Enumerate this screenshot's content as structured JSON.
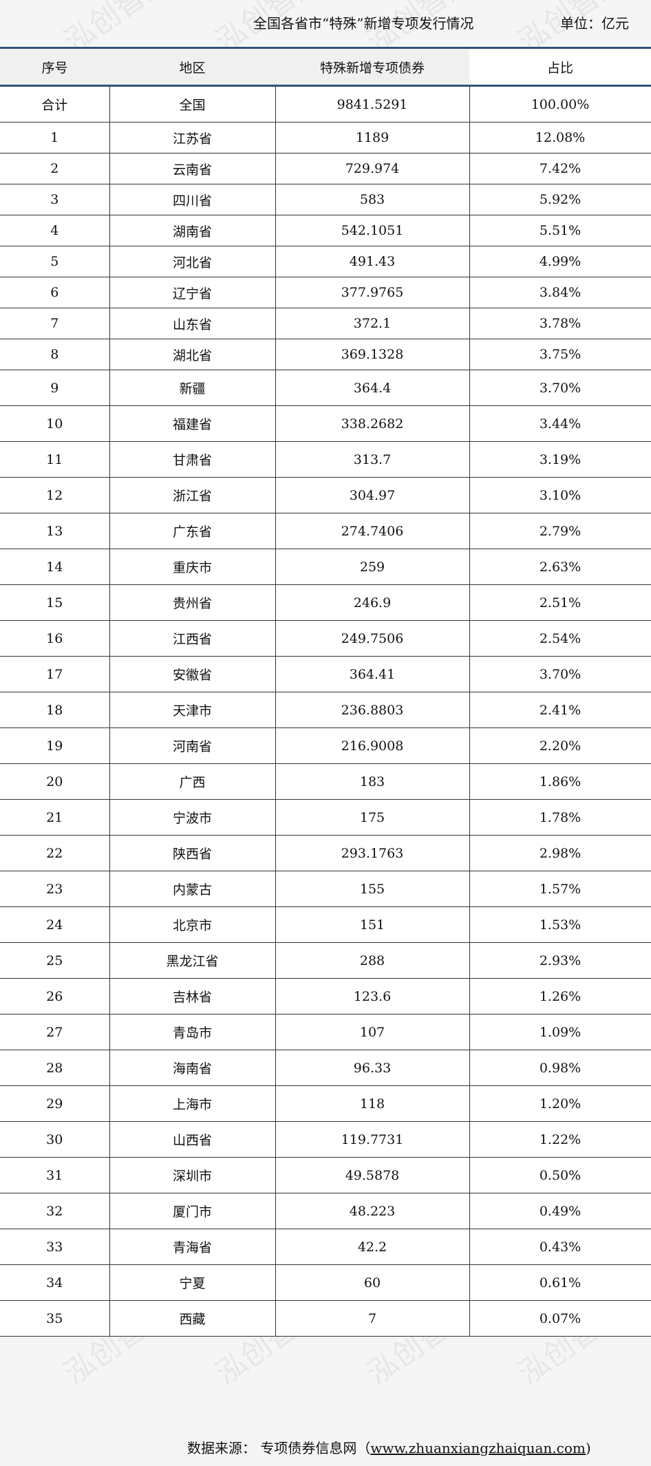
{
  "title": "全国各省市“特殊”新增专项发行情况",
  "unit": "单位：亿元",
  "columns": [
    "序号",
    "地区",
    "特殊新增专项债券",
    "占比"
  ],
  "total": {
    "seq": "合计",
    "region": "全国",
    "amount": "9841.5291",
    "share": "100.00%"
  },
  "rows": [
    [
      "1",
      "江苏省",
      "1189",
      "12.08%"
    ],
    [
      "2",
      "云南省",
      "729.974",
      "7.42%"
    ],
    [
      "3",
      "四川省",
      "583",
      "5.92%"
    ],
    [
      "4",
      "湖南省",
      "542.1051",
      "5.51%"
    ],
    [
      "5",
      "河北省",
      "491.43",
      "4.99%"
    ],
    [
      "6",
      "辽宁省",
      "377.9765",
      "3.84%"
    ],
    [
      "7",
      "山东省",
      "372.1",
      "3.78%"
    ],
    [
      "8",
      "湖北省",
      "369.1328",
      "3.75%"
    ],
    [
      "9",
      "新疆",
      "364.4",
      "3.70%"
    ],
    [
      "10",
      "福建省",
      "338.2682",
      "3.44%"
    ],
    [
      "11",
      "甘肃省",
      "313.7",
      "3.19%"
    ],
    [
      "12",
      "浙江省",
      "304.97",
      "3.10%"
    ],
    [
      "13",
      "广东省",
      "274.7406",
      "2.79%"
    ],
    [
      "14",
      "重庆市",
      "259",
      "2.63%"
    ],
    [
      "15",
      "贵州省",
      "246.9",
      "2.51%"
    ],
    [
      "16",
      "江西省",
      "249.7506",
      "2.54%"
    ],
    [
      "17",
      "安徽省",
      "364.41",
      "3.70%"
    ],
    [
      "18",
      "天津市",
      "236.8803",
      "2.41%"
    ],
    [
      "19",
      "河南省",
      "216.9008",
      "2.20%"
    ],
    [
      "20",
      "广西",
      "183",
      "1.86%"
    ],
    [
      "21",
      "宁波市",
      "175",
      "1.78%"
    ],
    [
      "22",
      "陕西省",
      "293.1763",
      "2.98%"
    ],
    [
      "23",
      "内蒙古",
      "155",
      "1.57%"
    ],
    [
      "24",
      "北京市",
      "151",
      "1.53%"
    ],
    [
      "25",
      "黑龙江省",
      "288",
      "2.93%"
    ],
    [
      "26",
      "吉林省",
      "123.6",
      "1.26%"
    ],
    [
      "27",
      "青岛市",
      "107",
      "1.09%"
    ],
    [
      "28",
      "海南省",
      "96.33",
      "0.98%"
    ],
    [
      "29",
      "上海市",
      "118",
      "1.20%"
    ],
    [
      "30",
      "山西省",
      "119.7731",
      "1.22%"
    ],
    [
      "31",
      "深圳市",
      "49.5878",
      "0.50%"
    ],
    [
      "32",
      "厦门市",
      "48.223",
      "0.49%"
    ],
    [
      "33",
      "青海省",
      "42.2",
      "0.43%"
    ],
    [
      "34",
      "宁夏",
      "60",
      "0.61%"
    ],
    [
      "35",
      "西藏",
      "7",
      "0.07%"
    ]
  ],
  "source": {
    "label": "数据来源：",
    "name": "专项债券信息网（",
    "url": "www.zhuanxiangzhaiquan.com",
    ")": ")",
    "close": "）"
  },
  "watermark": "泓创智胜"
}
